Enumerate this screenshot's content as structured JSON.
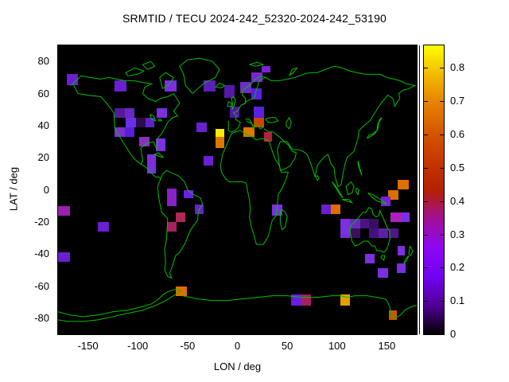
{
  "chart_data": {
    "type": "heatmap",
    "title": "SRMTID / TECU 2024-242_52320-2024-242_53190",
    "xlabel": "LON / deg",
    "ylabel": "LAT / deg",
    "xlim": [
      -180,
      180
    ],
    "ylim": [
      -90,
      90
    ],
    "x_ticks": [
      -150,
      -100,
      -50,
      0,
      50,
      100,
      150
    ],
    "y_ticks": [
      80,
      60,
      40,
      20,
      0,
      -20,
      -40,
      -60,
      -80
    ],
    "grid": false,
    "plot_background": "#000000",
    "coastline_color": "#00C000",
    "units": "TECU",
    "colorbar": {
      "min": 0,
      "max": 0.868,
      "tick_labels": [
        "0",
        "0.1",
        "0.2",
        "0.3",
        "0.4",
        "0.5",
        "0.6",
        "0.7",
        "0.8"
      ],
      "tick_values": [
        0,
        0.1,
        0.2,
        0.3,
        0.4,
        0.5,
        0.6,
        0.7,
        0.8
      ],
      "palette": "pm3d black-violet-red-yellow",
      "gradient_stops": [
        "#000000",
        "#510096",
        "#7202F3",
        "#8C07F3",
        "#A11096",
        "#B42000",
        "#C63700",
        "#D55700",
        "#E48300",
        "#F2BA00",
        "#FFFF00"
      ],
      "legend_position": "right"
    },
    "cells": [
      {
        "lon": [
          -171,
          -160
        ],
        "lat": [
          65,
          72
        ],
        "value": 0.18,
        "color": "#6A1FD0"
      },
      {
        "lon": [
          -123,
          -111
        ],
        "lat": [
          61,
          68
        ],
        "value": 0.18,
        "color": "#6A1FD0"
      },
      {
        "lon": [
          -73,
          -61
        ],
        "lat": [
          61,
          68
        ],
        "value": 0.2,
        "color": "#7B2FDF"
      },
      {
        "lon": [
          -34,
          -22
        ],
        "lat": [
          61,
          68
        ],
        "value": 0.16,
        "color": "#5C1FB8"
      },
      {
        "lon": [
          -13,
          -3
        ],
        "lat": [
          57,
          65
        ],
        "value": 0.15,
        "color": "#5518A8"
      },
      {
        "lon": [
          -123,
          -113
        ],
        "lat": [
          45,
          51
        ],
        "value": 0.15,
        "color": "#551A99"
      },
      {
        "lon": [
          -113,
          -103
        ],
        "lat": [
          45,
          51
        ],
        "value": 0.19,
        "color": "#6A28C0"
      },
      {
        "lon": [
          -81,
          -71
        ],
        "lat": [
          45,
          51
        ],
        "value": 0.2,
        "color": "#7B2FDF"
      },
      {
        "lon": [
          -112,
          -102
        ],
        "lat": [
          39,
          45
        ],
        "value": 0.19,
        "color": "#6A2FE8"
      },
      {
        "lon": [
          -102,
          -92
        ],
        "lat": [
          39,
          45
        ],
        "value": 0.07,
        "color": "#2E0A50"
      },
      {
        "lon": [
          -92,
          -83
        ],
        "lat": [
          39,
          45
        ],
        "value": 0.17,
        "color": "#5C23C8"
      },
      {
        "lon": [
          -123,
          -113
        ],
        "lat": [
          33,
          39
        ],
        "value": 0.21,
        "color": "#7733CC"
      },
      {
        "lon": [
          -113,
          -103
        ],
        "lat": [
          33,
          39
        ],
        "value": 0.17,
        "color": "#5A1FD8"
      },
      {
        "lon": [
          -99,
          -88
        ],
        "lat": [
          27,
          33
        ],
        "value": 0.27,
        "color": "#8B2FC0"
      },
      {
        "lon": [
          -82,
          -72
        ],
        "lat": [
          24,
          32
        ],
        "value": 0.2,
        "color": "#7B2FDF"
      },
      {
        "lon": [
          -91,
          -82
        ],
        "lat": [
          10,
          22
        ],
        "value": 0.2,
        "color": "#7B2FDF"
      },
      {
        "lon": [
          -41,
          -31
        ],
        "lat": [
          36,
          42
        ],
        "value": 0.18,
        "color": "#6A1FD0"
      },
      {
        "lon": [
          -22,
          -13
        ],
        "lat": [
          33,
          38
        ],
        "value": 0.8,
        "color": "#FFE800"
      },
      {
        "lon": [
          -22,
          -13
        ],
        "lat": [
          26,
          33
        ],
        "value": 0.57,
        "color": "#DD7700"
      },
      {
        "lon": [
          -34,
          -24
        ],
        "lat": [
          15,
          21
        ],
        "value": 0.18,
        "color": "#6A1FD0"
      },
      {
        "lon": [
          14,
          25
        ],
        "lat": [
          67,
          73
        ],
        "value": 0.2,
        "color": "#7B22D8"
      },
      {
        "lon": [
          24,
          33
        ],
        "lat": [
          73,
          77
        ],
        "value": 0.2,
        "color": "#7B22D8"
      },
      {
        "lon": [
          3,
          14
        ],
        "lat": [
          60,
          67
        ],
        "value": 0.19,
        "color": "#6F2CC9"
      },
      {
        "lon": [
          14,
          24
        ],
        "lat": [
          56,
          63
        ],
        "value": 0.17,
        "color": "#5A1FE0"
      },
      {
        "lon": [
          -8,
          2
        ],
        "lat": [
          45,
          52
        ],
        "value": 0.15,
        "color": "#5516A8"
      },
      {
        "lon": [
          16,
          27
        ],
        "lat": [
          45,
          52
        ],
        "value": 0.17,
        "color": "#5A1FE0"
      },
      {
        "lon": [
          16,
          27
        ],
        "lat": [
          39,
          45
        ],
        "value": 0.45,
        "color": "#CC4400"
      },
      {
        "lon": [
          6,
          17
        ],
        "lat": [
          33,
          39
        ],
        "value": 0.57,
        "color": "#DD7700"
      },
      {
        "lon": [
          27,
          35
        ],
        "lat": [
          30,
          36
        ],
        "value": 0.38,
        "color": "#B52040"
      },
      {
        "lon": [
          -180,
          -168
        ],
        "lat": [
          -16,
          -10
        ],
        "value": 0.3,
        "color": "#9922AA"
      },
      {
        "lon": [
          -140,
          -129
        ],
        "lat": [
          -26,
          -20
        ],
        "value": 0.18,
        "color": "#6A1FD0"
      },
      {
        "lon": [
          -180,
          -168
        ],
        "lat": [
          -45,
          -39
        ],
        "value": 0.18,
        "color": "#6A1FD0"
      },
      {
        "lon": [
          -71,
          -61
        ],
        "lat": [
          -10,
          1
        ],
        "value": 0.26,
        "color": "#8822C8"
      },
      {
        "lon": [
          -54,
          -44
        ],
        "lat": [
          -5,
          0
        ],
        "value": 0.19,
        "color": "#6A1FE8"
      },
      {
        "lon": [
          -43,
          -34
        ],
        "lat": [
          -15,
          -9
        ],
        "value": 0.18,
        "color": "#6A1FD0"
      },
      {
        "lon": [
          -62,
          -52
        ],
        "lat": [
          -20,
          -14
        ],
        "value": 0.36,
        "color": "#B02858"
      },
      {
        "lon": [
          -71,
          -61
        ],
        "lat": [
          -26,
          -20
        ],
        "value": 0.34,
        "color": "#A82060"
      },
      {
        "lon": [
          -62,
          -51
        ],
        "lat": [
          -66,
          -60
        ],
        "value": 0.55,
        "color": "#DD6E00"
      },
      {
        "lon": [
          35,
          45
        ],
        "lat": [
          -16,
          -9
        ],
        "value": 0.2,
        "color": "#7B2FDF"
      },
      {
        "lon": [
          84,
          94
        ],
        "lat": [
          -15,
          -9
        ],
        "value": 0.18,
        "color": "#6A1FD0"
      },
      {
        "lon": [
          94,
          103
        ],
        "lat": [
          -15,
          -9
        ],
        "value": 0.55,
        "color": "#DD6E00"
      },
      {
        "lon": [
          161,
          172
        ],
        "lat": [
          0,
          6
        ],
        "value": 0.55,
        "color": "#DD6E00"
      },
      {
        "lon": [
          151,
          162
        ],
        "lat": [
          -6,
          0
        ],
        "value": 0.55,
        "color": "#DD6E00"
      },
      {
        "lon": [
          144,
          154
        ],
        "lat": [
          -10,
          -4
        ],
        "value": 0.2,
        "color": "#7B1FDF"
      },
      {
        "lon": [
          154,
          165
        ],
        "lat": [
          -20,
          -14
        ],
        "value": 0.31,
        "color": "#AA22BB"
      },
      {
        "lon": [
          165,
          173
        ],
        "lat": [
          -20,
          -14
        ],
        "value": 0.2,
        "color": "#7B2FDF"
      },
      {
        "lon": [
          103,
          113
        ],
        "lat": [
          -24,
          -18
        ],
        "value": 0.2,
        "color": "#7B2FDF"
      },
      {
        "lon": [
          113,
          123
        ],
        "lat": [
          -24,
          -18
        ],
        "value": 0.18,
        "color": "#6A28B8"
      },
      {
        "lon": [
          123,
          132
        ],
        "lat": [
          -24,
          -18
        ],
        "value": 0.12,
        "color": "#4A1580"
      },
      {
        "lon": [
          132,
          142
        ],
        "lat": [
          -24,
          -18
        ],
        "value": 0.09,
        "color": "#380E60"
      },
      {
        "lon": [
          132,
          142
        ],
        "lat": [
          -30,
          -24
        ],
        "value": 0.11,
        "color": "#41127A"
      },
      {
        "lon": [
          103,
          113
        ],
        "lat": [
          -30,
          -24
        ],
        "value": 0.2,
        "color": "#7B2FDF"
      },
      {
        "lon": [
          113,
          123
        ],
        "lat": [
          -30,
          -24
        ],
        "value": 0.1,
        "color": "#3A105E"
      },
      {
        "lon": [
          142,
          151
        ],
        "lat": [
          -30,
          -24
        ],
        "value": 0.16,
        "color": "#5E1FA8"
      },
      {
        "lon": [
          152,
          162
        ],
        "lat": [
          -30,
          -24
        ],
        "value": 0.15,
        "color": "#55128F"
      },
      {
        "lon": [
          161,
          168
        ],
        "lat": [
          -41,
          -35
        ],
        "value": 0.2,
        "color": "#7B2FDF"
      },
      {
        "lon": [
          128,
          138
        ],
        "lat": [
          -46,
          -40
        ],
        "value": 0.2,
        "color": "#7B2FDF"
      },
      {
        "lon": [
          160,
          169
        ],
        "lat": [
          -52,
          -46
        ],
        "value": 0.2,
        "color": "#7B2FDF"
      },
      {
        "lon": [
          141,
          151
        ],
        "lat": [
          -55,
          -49
        ],
        "value": 0.2,
        "color": "#7B2FDF"
      },
      {
        "lon": [
          54,
          64
        ],
        "lat": [
          -72,
          -65
        ],
        "value": 0.18,
        "color": "#6A1FE0"
      },
      {
        "lon": [
          64,
          74
        ],
        "lat": [
          -72,
          -65
        ],
        "value": 0.34,
        "color": "#A52060"
      },
      {
        "lon": [
          103,
          113
        ],
        "lat": [
          -72,
          -65
        ],
        "value": 0.63,
        "color": "#E5A000"
      },
      {
        "lon": [
          152,
          160
        ],
        "lat": [
          -81,
          -75
        ],
        "value": 0.47,
        "color": "#CC5500"
      }
    ]
  },
  "colors": {
    "background": "#FFFFFF",
    "plot_background": "#000000",
    "coastline": "#00C000",
    "text": "#000000",
    "frame": "#000000"
  }
}
